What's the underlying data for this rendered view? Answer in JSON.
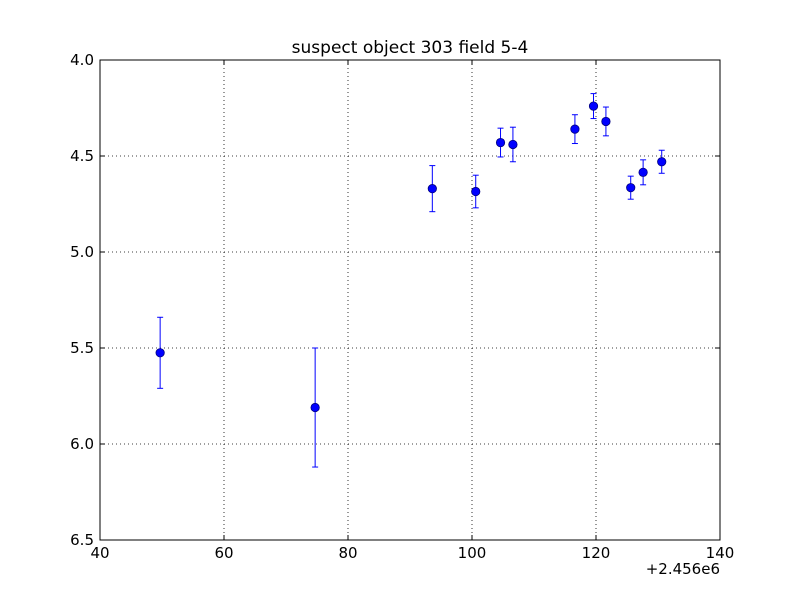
{
  "chart_data": {
    "type": "scatter",
    "title": "suspect object 303 field 5-4",
    "xlabel": "",
    "ylabel": "",
    "x_offset_label": "+2.456e6",
    "xlim": [
      40,
      140
    ],
    "ylim": [
      4.0,
      6.5
    ],
    "y_inverted": true,
    "grid": true,
    "x_ticks": [
      "40",
      "60",
      "80",
      "100",
      "120",
      "140"
    ],
    "y_ticks": [
      "4.0",
      "4.5",
      "5.0",
      "5.5",
      "6.0",
      "6.5"
    ],
    "colors": {
      "marker": "#0000ff",
      "errorbar": "#0000ff",
      "grid": "#000000"
    },
    "points": [
      {
        "x": 49.7,
        "y": 5.525,
        "err": 0.185
      },
      {
        "x": 74.7,
        "y": 5.81,
        "err": 0.31
      },
      {
        "x": 93.6,
        "y": 4.67,
        "err": 0.12
      },
      {
        "x": 100.6,
        "y": 4.685,
        "err": 0.085
      },
      {
        "x": 104.6,
        "y": 4.43,
        "err": 0.075
      },
      {
        "x": 106.6,
        "y": 4.44,
        "err": 0.09
      },
      {
        "x": 116.6,
        "y": 4.36,
        "err": 0.075
      },
      {
        "x": 119.6,
        "y": 4.24,
        "err": 0.065
      },
      {
        "x": 121.6,
        "y": 4.32,
        "err": 0.075
      },
      {
        "x": 125.6,
        "y": 4.665,
        "err": 0.06
      },
      {
        "x": 127.6,
        "y": 4.585,
        "err": 0.065
      },
      {
        "x": 130.6,
        "y": 4.53,
        "err": 0.06
      }
    ]
  }
}
